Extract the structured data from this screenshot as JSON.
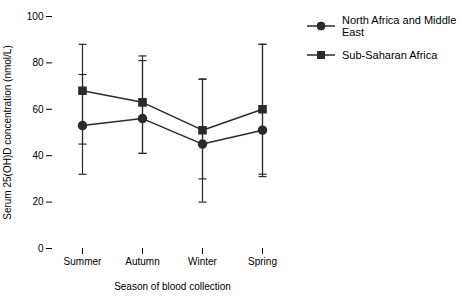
{
  "chart_data": {
    "type": "line",
    "categories": [
      "Summer",
      "Autumn",
      "Winter",
      "Spring"
    ],
    "series": [
      {
        "name": "North Africa and Middle East",
        "color": "#2b2b2b",
        "marker": "circle",
        "values": [
          53,
          56,
          45,
          51
        ],
        "error_lower": [
          21,
          15,
          25,
          20
        ],
        "error_upper": [
          22,
          25,
          28,
          37
        ]
      },
      {
        "name": "Sub-Saharan Africa",
        "color": "#2b2b2b",
        "marker": "square",
        "values": [
          68,
          63,
          51,
          60
        ],
        "error_lower": [
          23,
          22,
          21,
          28
        ],
        "error_upper": [
          20,
          20,
          22,
          28
        ]
      }
    ],
    "xlabel": "Season of blood collection",
    "ylabel": "Serum 25(OH)D concentration (nmol/L)",
    "ylim": [
      0,
      100
    ],
    "yticks": [
      0,
      20,
      40,
      60,
      80,
      100
    ],
    "grid": false,
    "legend": "right"
  }
}
